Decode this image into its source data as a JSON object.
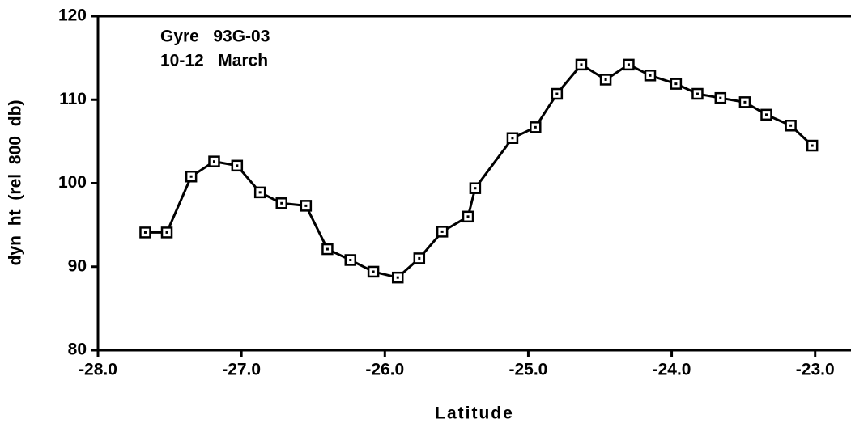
{
  "chart_data": {
    "type": "line",
    "annotations": [
      "Gyre   93G-03",
      "10-12   March"
    ],
    "xlabel": "Latitude",
    "ylabel": "dyn ht (rel 800 db)",
    "x": [
      -27.67,
      -27.52,
      -27.35,
      -27.19,
      -27.03,
      -26.87,
      -26.72,
      -26.55,
      -26.4,
      -26.24,
      -26.08,
      -25.91,
      -25.76,
      -25.6,
      -25.42,
      -25.37,
      -25.11,
      -24.95,
      -24.8,
      -24.63,
      -24.46,
      -24.3,
      -24.15,
      -23.97,
      -23.82,
      -23.66,
      -23.49,
      -23.34,
      -23.17,
      -23.02
    ],
    "series": [
      {
        "color": "#000000",
        "values": [
          94.1,
          94.1,
          100.8,
          102.6,
          102.1,
          98.9,
          97.6,
          97.3,
          92.1,
          90.8,
          89.4,
          88.7,
          91.0,
          94.2,
          96.0,
          99.4,
          105.4,
          106.7,
          110.7,
          114.2,
          112.4,
          114.2,
          112.9,
          111.9,
          110.7,
          110.2,
          109.7,
          108.2,
          106.9,
          104.5
        ]
      }
    ],
    "xlim": [
      -28.0,
      -22.75
    ],
    "xticks": [
      {
        "value": -28,
        "label": "-28.0"
      },
      {
        "value": -27,
        "label": "-27.0"
      },
      {
        "value": -26,
        "label": "-26.0"
      },
      {
        "value": -25,
        "label": "-25.0"
      },
      {
        "value": -24,
        "label": "-24.0"
      },
      {
        "value": -23,
        "label": "-23.0"
      }
    ],
    "ylim": [
      80,
      120
    ],
    "yticks": [
      80,
      90,
      100,
      110,
      120
    ],
    "grid": false
  }
}
